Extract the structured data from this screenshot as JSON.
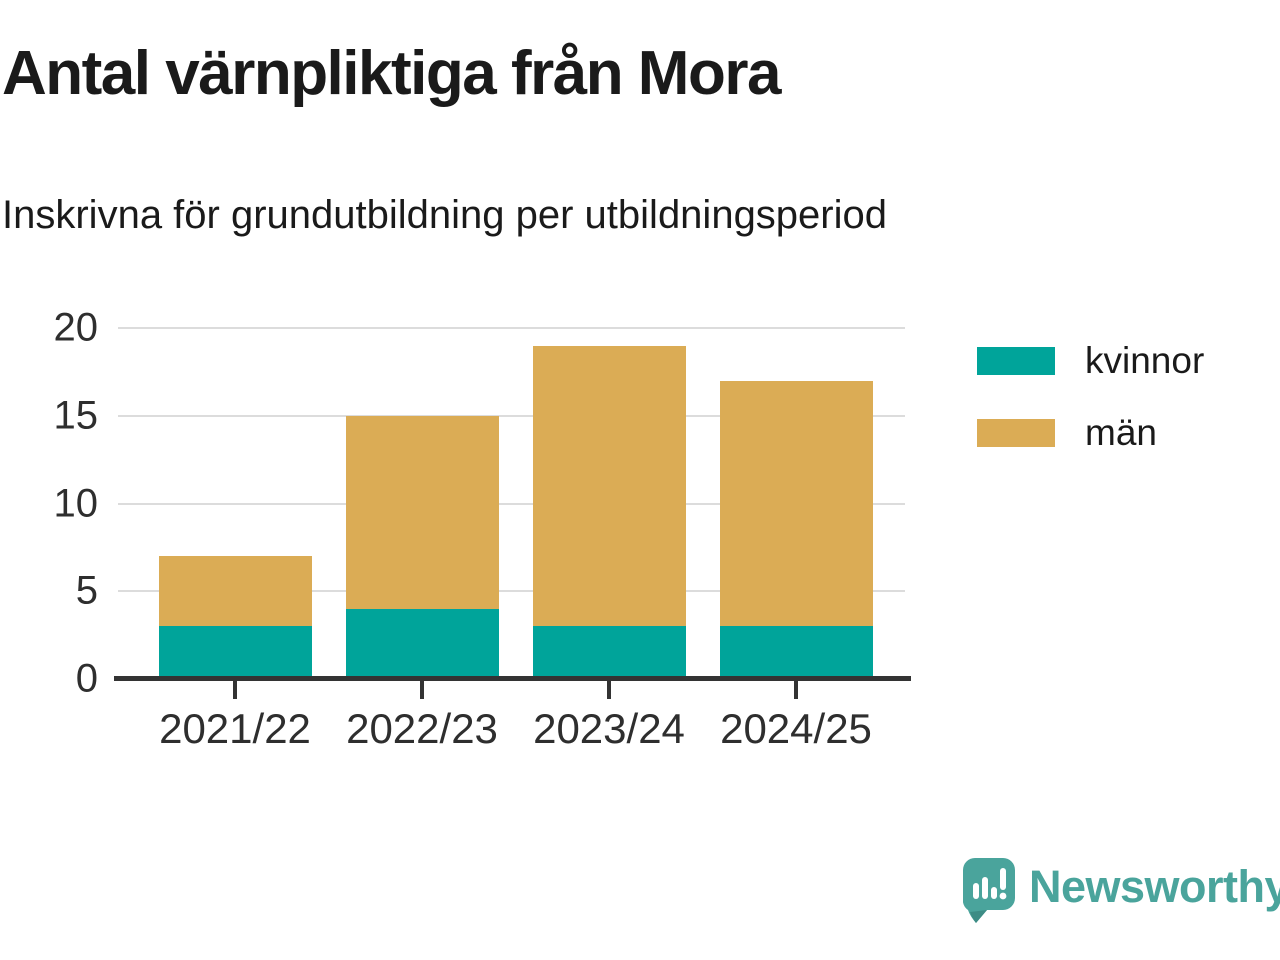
{
  "header": {
    "title": "Antal värnpliktiga från Mora",
    "subtitle": "Inskrivna för grundutbildning per utbildningsperiod"
  },
  "chart_data": {
    "type": "bar",
    "stacked": true,
    "title": "Antal värnpliktiga från Mora",
    "subtitle": "Inskrivna för grundutbildning per utbildningsperiod",
    "categories": [
      "2021/22",
      "2022/23",
      "2023/24",
      "2024/25"
    ],
    "series": [
      {
        "name": "kvinnor",
        "color": "#00a49a",
        "values": [
          3,
          4,
          3,
          3
        ]
      },
      {
        "name": "män",
        "color": "#dbac55",
        "values": [
          4,
          11,
          16,
          14
        ]
      }
    ],
    "stacked_totals": [
      7,
      15,
      19,
      17
    ],
    "yticks": [
      0,
      5,
      10,
      15,
      20
    ],
    "ylim": [
      0,
      20
    ],
    "xlabel": "",
    "ylabel": "",
    "grid": true,
    "legend_position": "right"
  },
  "legend": {
    "items": [
      {
        "label": "kvinnor",
        "color": "#00a49a"
      },
      {
        "label": "män",
        "color": "#dbac55"
      }
    ]
  },
  "branding": {
    "name": "Newsworthy",
    "icon": "newsworthy-speech-bubble-chart-icon",
    "color": "#4aa49c"
  },
  "style": {
    "grid_color": "#dcdcdc",
    "axis_color": "#333333",
    "text_color": "#1a1a1a"
  }
}
